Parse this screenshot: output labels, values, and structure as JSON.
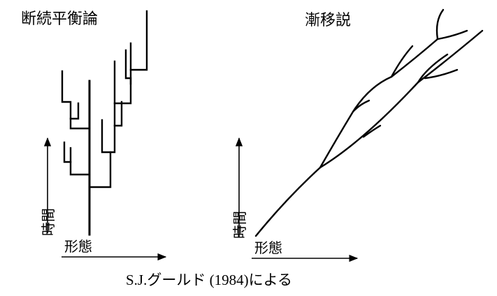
{
  "left_panel": {
    "title": "断続平衡論",
    "y_axis_label": "時間",
    "x_axis_label": "形態"
  },
  "right_panel": {
    "title": "漸移説",
    "y_axis_label": "時間",
    "x_axis_label": "形態"
  },
  "caption": "S.J.グールド (1984)による",
  "colors": {
    "ink": "#000000",
    "background": "#ffffff"
  }
}
